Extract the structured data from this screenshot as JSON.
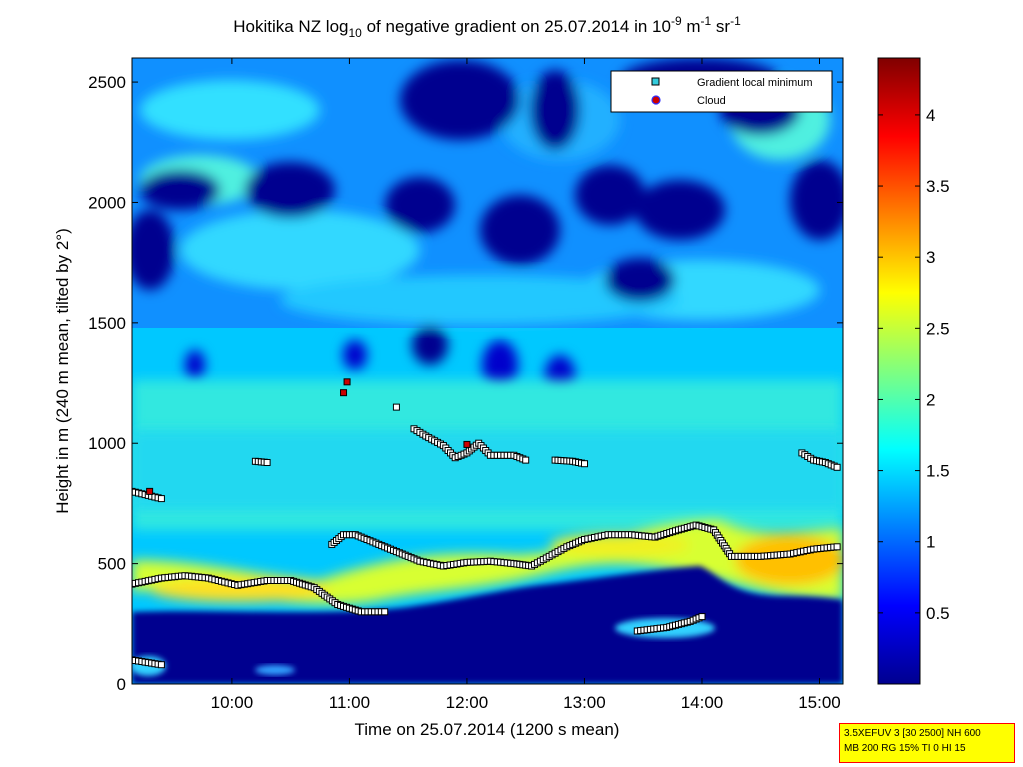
{
  "chart_data": {
    "type": "heatmap",
    "title": {
      "prefix": "Hokitika NZ log",
      "prefix_sub": "10",
      "middle": " of negative gradient on 25.07.2014 in 10",
      "sup1": "-9",
      "mid2": " m",
      "sup2": "-1",
      "mid3": " sr",
      "sup3": "-1"
    },
    "xlabel": "Time on 25.07.2014 (1200 s mean)",
    "ylabel": "Height in m (240 m mean, tilted by 2°)",
    "xlim_hours": [
      9.15,
      15.2
    ],
    "ylim": [
      0,
      2600
    ],
    "x_ticks": [
      {
        "h": 10,
        "label": "10:00"
      },
      {
        "h": 11,
        "label": "11:00"
      },
      {
        "h": 12,
        "label": "12:00"
      },
      {
        "h": 13,
        "label": "13:00"
      },
      {
        "h": 14,
        "label": "14:00"
      },
      {
        "h": 15,
        "label": "15:00"
      }
    ],
    "y_ticks": [
      0,
      500,
      1000,
      1500,
      2000,
      2500
    ],
    "colorbar": {
      "range": [
        0,
        4.4
      ],
      "ticks": [
        0.5,
        1,
        1.5,
        2,
        2.5,
        3,
        3.5,
        4
      ],
      "colormap": "jet",
      "colors": {
        "c0": "#00008f",
        "c1": "#0000ff",
        "c2": "#00ffff",
        "c3": "#ffff00",
        "c4": "#ff0000",
        "c5": "#800000"
      }
    },
    "legend": {
      "placement": "top-right",
      "items": [
        {
          "label": "Gradient local minimum",
          "marker": "square",
          "color": "#33ccdd"
        },
        {
          "label": "Cloud",
          "marker": "circle",
          "color": "#cc0000"
        }
      ]
    },
    "boundary_layer_line_1": [
      [
        9.15,
        415
      ],
      [
        9.4,
        440
      ],
      [
        9.6,
        450
      ],
      [
        9.8,
        440
      ],
      [
        10.05,
        410
      ],
      [
        10.3,
        430
      ],
      [
        10.5,
        430
      ],
      [
        10.7,
        400
      ],
      [
        10.9,
        330
      ],
      [
        11.1,
        300
      ],
      [
        11.3,
        300
      ]
    ],
    "boundary_layer_line_2": [
      [
        10.85,
        580
      ],
      [
        10.95,
        620
      ],
      [
        11.05,
        620
      ],
      [
        11.2,
        590
      ],
      [
        11.4,
        550
      ],
      [
        11.6,
        510
      ],
      [
        11.8,
        490
      ],
      [
        12.0,
        505
      ],
      [
        12.2,
        510
      ],
      [
        12.4,
        500
      ],
      [
        12.55,
        490
      ],
      [
        12.7,
        530
      ],
      [
        12.85,
        570
      ],
      [
        13.0,
        600
      ],
      [
        13.2,
        620
      ],
      [
        13.4,
        620
      ],
      [
        13.6,
        610
      ],
      [
        13.8,
        640
      ],
      [
        13.95,
        660
      ],
      [
        14.1,
        640
      ],
      [
        14.25,
        530
      ],
      [
        14.5,
        530
      ],
      [
        14.75,
        540
      ],
      [
        14.95,
        560
      ],
      [
        15.15,
        570
      ]
    ],
    "segment_low_left": [
      [
        9.15,
        100
      ],
      [
        9.4,
        80
      ]
    ],
    "segment_low_right": [
      [
        13.45,
        220
      ],
      [
        13.7,
        235
      ],
      [
        13.9,
        260
      ],
      [
        14.0,
        280
      ]
    ],
    "segment_top_left": [
      [
        9.15,
        800
      ],
      [
        9.4,
        770
      ]
    ],
    "segment_mid_right": [
      [
        14.85,
        960
      ],
      [
        14.95,
        930
      ],
      [
        15.05,
        920
      ],
      [
        15.15,
        900
      ]
    ],
    "segment_mid_a": [
      [
        10.2,
        925
      ],
      [
        10.3,
        920
      ]
    ],
    "segment_mid_b": [
      [
        11.55,
        1060
      ],
      [
        11.65,
        1030
      ],
      [
        11.8,
        990
      ],
      [
        11.9,
        940
      ],
      [
        12.0,
        960
      ],
      [
        12.1,
        1000
      ],
      [
        12.2,
        950
      ],
      [
        12.4,
        950
      ],
      [
        12.5,
        930
      ]
    ],
    "segment_mid_c": [
      [
        12.75,
        930
      ],
      [
        12.9,
        925
      ],
      [
        13.0,
        915
      ]
    ],
    "isolated_points": [
      [
        11.4,
        1150
      ]
    ],
    "cloud_points": [
      [
        10.95,
        1210
      ],
      [
        10.98,
        1255
      ],
      [
        12.0,
        995
      ],
      [
        9.3,
        800
      ]
    ]
  },
  "info_box": {
    "line1": "3.5XEFUV 3 [30 2500] NH 600",
    "line2": "MB 200 RG 15% TI 0 HI 15"
  }
}
